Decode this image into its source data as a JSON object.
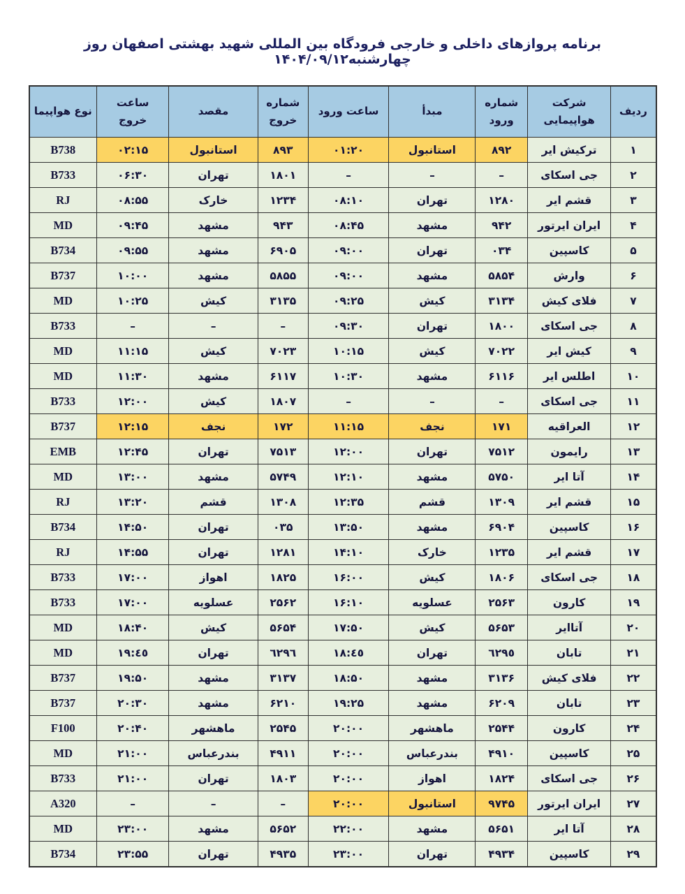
{
  "title": "برنامه پروازهای داخلی و خارجی فرودگاه بین المللی شهید بهشتی اصفهان روز چهارشنبه۱۴۰۴/۰۹/۱۲",
  "colors": {
    "header_bg": "#a6cbe3",
    "row_bg": "#e7efde",
    "highlight_bg": "#fcd462",
    "border": "#2f2f2f",
    "text": "#14143c",
    "title": "#1c2060"
  },
  "columns": [
    {
      "key": "radif",
      "label": "ردیف"
    },
    {
      "key": "airline",
      "label": "شرکت هواپیمایی"
    },
    {
      "key": "arr_no",
      "label": "شماره ورود"
    },
    {
      "key": "origin",
      "label": "مبدأ"
    },
    {
      "key": "arr_time",
      "label": "ساعت ورود"
    },
    {
      "key": "dep_no",
      "label": "شماره خروج"
    },
    {
      "key": "dest",
      "label": "مقصد"
    },
    {
      "key": "dep_time",
      "label": "ساعت خروج"
    },
    {
      "key": "aircraft",
      "label": "نوع هواپیما"
    }
  ],
  "rows": [
    {
      "radif": "۱",
      "airline": "ترکیش ایر",
      "arr_no": "۸۹۲",
      "origin": "استانبول",
      "arr_time": "۰۱:۲۰",
      "dep_no": "۸۹۳",
      "dest": "استانبول",
      "dep_time": "۰۲:۱۵",
      "aircraft": "B738",
      "highlight": [
        "arr_no",
        "origin",
        "arr_time",
        "dep_no",
        "dest",
        "dep_time"
      ]
    },
    {
      "radif": "۲",
      "airline": "جی اسکای",
      "arr_no": "–",
      "origin": "–",
      "arr_time": "–",
      "dep_no": "۱۸۰۱",
      "dest": "تهران",
      "dep_time": "۰۶:۳۰",
      "aircraft": "B733",
      "highlight": []
    },
    {
      "radif": "۳",
      "airline": "قشم ایر",
      "arr_no": "۱۲۸۰",
      "origin": "تهران",
      "arr_time": "۰۸:۱۰",
      "dep_no": "۱۲۳۴",
      "dest": "خارک",
      "dep_time": "۰۸:۵۵",
      "aircraft": "RJ",
      "highlight": []
    },
    {
      "radif": "۴",
      "airline": "ایران ایرتور",
      "arr_no": "۹۴۲",
      "origin": "مشهد",
      "arr_time": "۰۸:۴۵",
      "dep_no": "۹۴۳",
      "dest": "مشهد",
      "dep_time": "۰۹:۴۵",
      "aircraft": "MD",
      "highlight": []
    },
    {
      "radif": "۵",
      "airline": "کاسپین",
      "arr_no": "۰۳۴",
      "origin": "تهران",
      "arr_time": "۰۹:۰۰",
      "dep_no": "۶۹۰۵",
      "dest": "مشهد",
      "dep_time": "۰۹:۵۵",
      "aircraft": "B734",
      "highlight": []
    },
    {
      "radif": "۶",
      "airline": "وارش",
      "arr_no": "۵۸۵۴",
      "origin": "مشهد",
      "arr_time": "۰۹:۰۰",
      "dep_no": "۵۸۵۵",
      "dest": "مشهد",
      "dep_time": "۱۰:۰۰",
      "aircraft": "B737",
      "highlight": []
    },
    {
      "radif": "۷",
      "airline": "فلای کیش",
      "arr_no": "۳۱۳۴",
      "origin": "کیش",
      "arr_time": "۰۹:۲۵",
      "dep_no": "۳۱۳۵",
      "dest": "کیش",
      "dep_time": "۱۰:۲۵",
      "aircraft": "MD",
      "highlight": []
    },
    {
      "radif": "۸",
      "airline": "جی اسکای",
      "arr_no": "۱۸۰۰",
      "origin": "تهران",
      "arr_time": "۰۹:۳۰",
      "dep_no": "–",
      "dest": "–",
      "dep_time": "–",
      "aircraft": "B733",
      "highlight": []
    },
    {
      "radif": "۹",
      "airline": "کیش ایر",
      "arr_no": "۷۰۲۲",
      "origin": "کیش",
      "arr_time": "۱۰:۱۵",
      "dep_no": "۷۰۲۳",
      "dest": "کیش",
      "dep_time": "۱۱:۱۵",
      "aircraft": "MD",
      "highlight": []
    },
    {
      "radif": "۱۰",
      "airline": "اطلس ایر",
      "arr_no": "۶۱۱۶",
      "origin": "مشهد",
      "arr_time": "۱۰:۳۰",
      "dep_no": "۶۱۱۷",
      "dest": "مشهد",
      "dep_time": "۱۱:۳۰",
      "aircraft": "MD",
      "highlight": []
    },
    {
      "radif": "۱۱",
      "airline": "جی اسکای",
      "arr_no": "–",
      "origin": "–",
      "arr_time": "–",
      "dep_no": "۱۸۰۷",
      "dest": "کیش",
      "dep_time": "۱۲:۰۰",
      "aircraft": "B733",
      "highlight": []
    },
    {
      "radif": "۱۲",
      "airline": "العراقیه",
      "arr_no": "۱۷۱",
      "origin": "نجف",
      "arr_time": "۱۱:۱۵",
      "dep_no": "۱۷۲",
      "dest": "نجف",
      "dep_time": "۱۲:۱۵",
      "aircraft": "B737",
      "highlight": [
        "arr_no",
        "origin",
        "arr_time",
        "dep_no",
        "dest",
        "dep_time"
      ]
    },
    {
      "radif": "۱۳",
      "airline": "رایمون",
      "arr_no": "۷۵۱۲",
      "origin": "تهران",
      "arr_time": "۱۲:۰۰",
      "dep_no": "۷۵۱۳",
      "dest": "تهران",
      "dep_time": "۱۲:۴۵",
      "aircraft": "EMB",
      "highlight": []
    },
    {
      "radif": "۱۴",
      "airline": "آتا ایر",
      "arr_no": "۵۷۵۰",
      "origin": "مشهد",
      "arr_time": "۱۲:۱۰",
      "dep_no": "۵۷۴۹",
      "dest": "مشهد",
      "dep_time": "۱۳:۰۰",
      "aircraft": "MD",
      "highlight": []
    },
    {
      "radif": "۱۵",
      "airline": "قشم ایر",
      "arr_no": "۱۳۰۹",
      "origin": "قشم",
      "arr_time": "۱۲:۳۵",
      "dep_no": "۱۳۰۸",
      "dest": "قشم",
      "dep_time": "۱۳:۲۰",
      "aircraft": "RJ",
      "highlight": []
    },
    {
      "radif": "۱۶",
      "airline": "کاسپین",
      "arr_no": "۶۹۰۴",
      "origin": "مشهد",
      "arr_time": "۱۳:۵۰",
      "dep_no": "۰۳۵",
      "dest": "تهران",
      "dep_time": "۱۴:۵۰",
      "aircraft": "B734",
      "highlight": []
    },
    {
      "radif": "۱۷",
      "airline": "قشم ایر",
      "arr_no": "۱۲۳۵",
      "origin": "خارک",
      "arr_time": "۱۴:۱۰",
      "dep_no": "۱۲۸۱",
      "dest": "تهران",
      "dep_time": "۱۴:۵۵",
      "aircraft": "RJ",
      "highlight": []
    },
    {
      "radif": "۱۸",
      "airline": "جی اسکای",
      "arr_no": "۱۸۰۶",
      "origin": "کیش",
      "arr_time": "۱۶:۰۰",
      "dep_no": "۱۸۲۵",
      "dest": "اهواز",
      "dep_time": "۱۷:۰۰",
      "aircraft": "B733",
      "highlight": []
    },
    {
      "radif": "۱۹",
      "airline": "کارون",
      "arr_no": "۲۵۶۳",
      "origin": "عسلویه",
      "arr_time": "۱۶:۱۰",
      "dep_no": "۲۵۶۲",
      "dest": "عسلویه",
      "dep_time": "۱۷:۰۰",
      "aircraft": "B733",
      "highlight": []
    },
    {
      "radif": "۲۰",
      "airline": "آتاایر",
      "arr_no": "۵۶۵۳",
      "origin": "کیش",
      "arr_time": "۱۷:۵۰",
      "dep_no": "۵۶۵۴",
      "dest": "کیش",
      "dep_time": "۱۸:۴۰",
      "aircraft": "MD",
      "highlight": []
    },
    {
      "radif": "۲۱",
      "airline": "تابان",
      "arr_no": "٦٢٩٥",
      "origin": "تهران",
      "arr_time": "١٨:٤٥",
      "dep_no": "٦٢٩٦",
      "dest": "تهران",
      "dep_time": "١٩:٤٥",
      "aircraft": "MD",
      "highlight": []
    },
    {
      "radif": "۲۲",
      "airline": "فلای کیش",
      "arr_no": "۳۱۳۶",
      "origin": "مشهد",
      "arr_time": "۱۸:۵۰",
      "dep_no": "۳۱۳۷",
      "dest": "مشهد",
      "dep_time": "۱۹:۵۰",
      "aircraft": "B737",
      "highlight": []
    },
    {
      "radif": "۲۳",
      "airline": "تابان",
      "arr_no": "۶۲۰۹",
      "origin": "مشهد",
      "arr_time": "۱۹:۲۵",
      "dep_no": "۶۲۱۰",
      "dest": "مشهد",
      "dep_time": "۲۰:۳۰",
      "aircraft": "B737",
      "highlight": []
    },
    {
      "radif": "۲۴",
      "airline": "کارون",
      "arr_no": "۲۵۴۴",
      "origin": "ماهشهر",
      "arr_time": "۲۰:۰۰",
      "dep_no": "۲۵۴۵",
      "dest": "ماهشهر",
      "dep_time": "۲۰:۴۰",
      "aircraft": "F100",
      "highlight": []
    },
    {
      "radif": "۲۵",
      "airline": "کاسپین",
      "arr_no": "۴۹۱۰",
      "origin": "بندرعباس",
      "arr_time": "۲۰:۰۰",
      "dep_no": "۴۹۱۱",
      "dest": "بندرعباس",
      "dep_time": "۲۱:۰۰",
      "aircraft": "MD",
      "highlight": []
    },
    {
      "radif": "۲۶",
      "airline": "جی اسکای",
      "arr_no": "۱۸۲۴",
      "origin": "اهواز",
      "arr_time": "۲۰:۰۰",
      "dep_no": "۱۸۰۳",
      "dest": "تهران",
      "dep_time": "۲۱:۰۰",
      "aircraft": "B733",
      "highlight": []
    },
    {
      "radif": "۲۷",
      "airline": "ایران ایرتور",
      "arr_no": "۹۷۴۵",
      "origin": "استانبول",
      "arr_time": "۲۰:۰۰",
      "dep_no": "–",
      "dest": "–",
      "dep_time": "–",
      "aircraft": "A320",
      "highlight": [
        "arr_no",
        "origin",
        "arr_time"
      ]
    },
    {
      "radif": "۲۸",
      "airline": "آتا ایر",
      "arr_no": "۵۶۵۱",
      "origin": "مشهد",
      "arr_time": "۲۲:۰۰",
      "dep_no": "۵۶۵۲",
      "dest": "مشهد",
      "dep_time": "۲۳:۰۰",
      "aircraft": "MD",
      "highlight": []
    },
    {
      "radif": "۲۹",
      "airline": "کاسپین",
      "arr_no": "۴۹۳۴",
      "origin": "تهران",
      "arr_time": "۲۳:۰۰",
      "dep_no": "۴۹۳۵",
      "dest": "تهران",
      "dep_time": "۲۳:۵۵",
      "aircraft": "B734",
      "highlight": []
    }
  ]
}
